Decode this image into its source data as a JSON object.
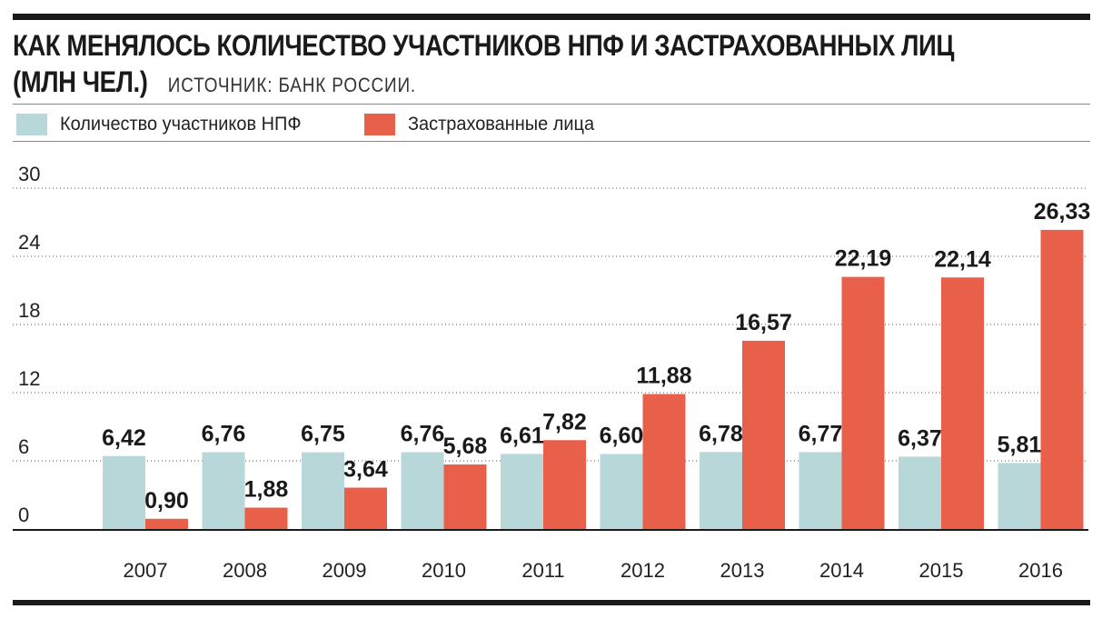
{
  "title": {
    "line1": "КАК МЕНЯЛОСЬ КОЛИЧЕСТВО УЧАСТНИКОВ НПФ И ЗАСТРАХОВАННЫХ ЛИЦ",
    "line2": "(МЛН ЧЕЛ.)",
    "source": "ИСТОЧНИК: БАНК РОССИИ."
  },
  "colors": {
    "participants": "#b7d7d8",
    "insured": "#e8604a",
    "text": "#1a1a1a",
    "grid": "#555555"
  },
  "chart_data": {
    "type": "bar",
    "categories": [
      "2007",
      "2008",
      "2009",
      "2010",
      "2011",
      "2012",
      "2013",
      "2014",
      "2015",
      "2016"
    ],
    "series": [
      {
        "name": "Количество участников НПФ",
        "values": [
          6.42,
          6.76,
          6.75,
          6.76,
          6.61,
          6.6,
          6.78,
          6.77,
          6.37,
          5.81
        ],
        "labels": [
          "6,42",
          "6,76",
          "6,75",
          "6,76",
          "6,61",
          "6,60",
          "6,78",
          "6,77",
          "6,37",
          "5,81"
        ]
      },
      {
        "name": "Застрахованные лица",
        "values": [
          0.9,
          1.88,
          3.64,
          5.68,
          7.82,
          11.88,
          16.57,
          22.19,
          22.14,
          26.33
        ],
        "labels": [
          "0,90",
          "1,88",
          "3,64",
          "5,68",
          "7,82",
          "11,88",
          "16,57",
          "22,19",
          "22,14",
          "26,33"
        ]
      }
    ],
    "ylim": [
      0,
      30
    ],
    "yticks": [
      "0",
      "6",
      "12",
      "18",
      "24",
      "30"
    ],
    "ytick_values": [
      0,
      6,
      12,
      18,
      24,
      30
    ],
    "grid": true,
    "legend": "top-left"
  }
}
